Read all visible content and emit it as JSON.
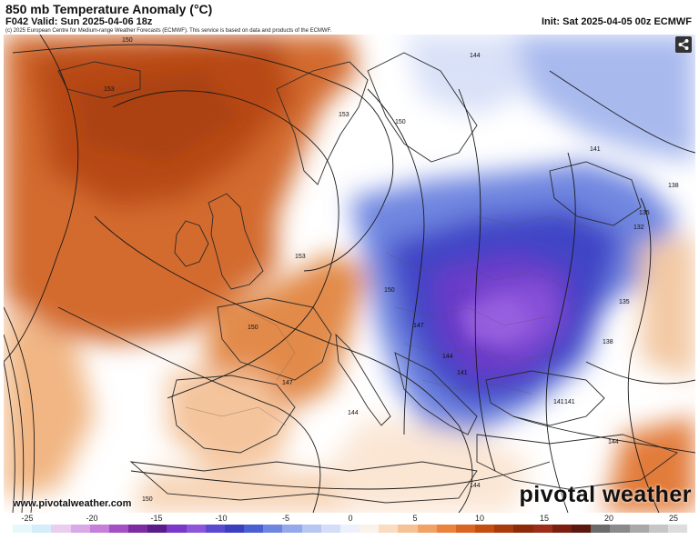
{
  "header": {
    "title": "850 mb Temperature Anomaly (°C)",
    "valid": "F042 Valid: Sun 2025-04-06 18z",
    "init": "Init: Sat 2025-04-05 00z ECMWF",
    "credit": "(c) 2025 European Centre for Medium-range Weather Forecasts (ECMWF). This service is based on data and products of the ECMWF."
  },
  "map": {
    "contour_labels": [
      "150",
      "153",
      "153",
      "150",
      "144",
      "141",
      "138",
      "135",
      "132",
      "153",
      "150",
      "147",
      "150",
      "147",
      "144",
      "141",
      "135",
      "138",
      "141",
      "141",
      "144",
      "144",
      "144",
      "150"
    ]
  },
  "footer": {
    "site": "www.pivotalweather.com",
    "brand": "pivotal weather"
  },
  "legend": {
    "labels": [
      "-25",
      "-20",
      "-15",
      "-10",
      "-5",
      "0",
      "5",
      "10",
      "15",
      "20",
      "25"
    ],
    "colors": [
      "#e7f8fc",
      "#d3eef8",
      "#eacdef",
      "#d9a8e6",
      "#c57fd8",
      "#a54fc4",
      "#7d2ba3",
      "#5a1c88",
      "#7a38c8",
      "#8d55d8",
      "#5b4ad0",
      "#3a3ebf",
      "#4a5fd0",
      "#6f86e0",
      "#95a8ea",
      "#b8c6f2",
      "#d5def8",
      "#eef1fb",
      "#fbf2ea",
      "#f9dcc2",
      "#f5c196",
      "#f0a267",
      "#e9833e",
      "#d96522",
      "#c44d12",
      "#a93a0d",
      "#8d2a0a",
      "#9b2d1a",
      "#7a1e10",
      "#5c1810",
      "#6b6b6b",
      "#8a8a8a",
      "#a8a8a8",
      "#c6c6c6",
      "#dddddd"
    ],
    "tick_positions": [
      0,
      0.2,
      0.4,
      0.6,
      0.8,
      1.0,
      1.2,
      1.4,
      1.6,
      1.8,
      2.0
    ]
  }
}
